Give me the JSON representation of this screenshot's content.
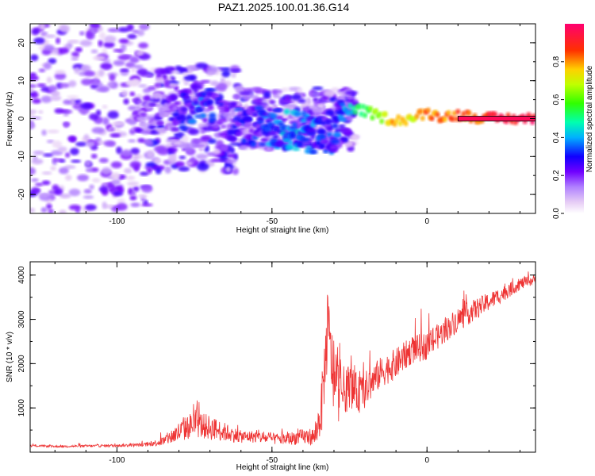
{
  "title": "PAZ1.2025.100.01.36.G14",
  "chart_data": [
    {
      "type": "heatmap",
      "xlabel": "Height of straight line (km)",
      "ylabel": "Frequency (Hz)",
      "xlim": [
        -128,
        35
      ],
      "ylim": [
        -25,
        25
      ],
      "xticks": [
        -100,
        -50,
        0
      ],
      "yticks": [
        -20,
        -10,
        0,
        10,
        20
      ],
      "colorbar": {
        "label": "Normalized spectral amplitude",
        "range": [
          0,
          1
        ],
        "ticks": [
          "0.0",
          "0.2",
          "0.4",
          "0.6",
          "0.8"
        ],
        "tick_values": [
          0,
          0.2,
          0.4,
          0.6,
          0.8
        ],
        "colors": [
          "#ffffff",
          "#e8d0f5",
          "#a070f0",
          "#6a00ff",
          "#0000ff",
          "#00c8ff",
          "#00ff80",
          "#60ff00",
          "#ffff00",
          "#ff8000",
          "#ff0000",
          "#ff0060"
        ]
      },
      "ridge": {
        "x": [
          -90,
          -80,
          -75,
          -70,
          -65,
          -60,
          -55,
          -50,
          -45,
          -40,
          -35,
          -30,
          -27,
          -20,
          -15,
          -10,
          -5,
          0,
          5,
          10,
          15,
          20,
          25,
          30,
          35
        ],
        "center_hz": [
          1,
          2,
          4,
          3,
          0,
          -1,
          -2,
          -2.5,
          -3,
          -3.5,
          -4,
          -5,
          2.5,
          2,
          0.5,
          -0.5,
          0,
          1.5,
          0.5,
          1,
          0.5,
          0,
          0,
          0,
          0
        ],
        "amplitude": [
          0.25,
          0.3,
          0.4,
          0.35,
          0.3,
          0.35,
          0.35,
          0.4,
          0.45,
          0.45,
          0.4,
          0.35,
          0.45,
          0.6,
          0.7,
          0.85,
          0.75,
          0.9,
          0.85,
          0.9,
          0.85,
          0.95,
          0.98,
          0.98,
          0.98
        ]
      }
    },
    {
      "type": "line",
      "xlabel": "Height of straight line (km)",
      "ylabel": "SNR (10 * v/v)",
      "xlim": [
        -128,
        35
      ],
      "ylim": [
        0,
        4300
      ],
      "xticks": [
        -100,
        -50,
        0
      ],
      "yticks": [
        1000,
        2000,
        3000,
        4000
      ],
      "color": "#ee3333",
      "series": [
        {
          "x": [
            -128,
            -120,
            -110,
            -100,
            -90,
            -85,
            -80,
            -75,
            -70,
            -65,
            -60,
            -55,
            -50,
            -45,
            -40,
            -36,
            -34,
            -32,
            -30,
            -28,
            -25,
            -22,
            -20,
            -15,
            -10,
            -5,
            0,
            5,
            10,
            15,
            20,
            25,
            30,
            35
          ],
          "y": [
            150,
            130,
            140,
            150,
            170,
            250,
            450,
            650,
            550,
            450,
            350,
            350,
            300,
            300,
            350,
            350,
            1000,
            2800,
            1600,
            1300,
            1500,
            1300,
            1400,
            1800,
            2000,
            2300,
            2400,
            2700,
            3000,
            3200,
            3400,
            3600,
            3800,
            3900
          ],
          "noise": [
            40,
            35,
            40,
            45,
            60,
            150,
            350,
            450,
            400,
            300,
            200,
            200,
            180,
            200,
            250,
            300,
            900,
            1200,
            1200,
            900,
            700,
            600,
            600,
            500,
            500,
            450,
            450,
            400,
            400,
            350,
            300,
            250,
            200,
            150
          ]
        }
      ]
    }
  ]
}
